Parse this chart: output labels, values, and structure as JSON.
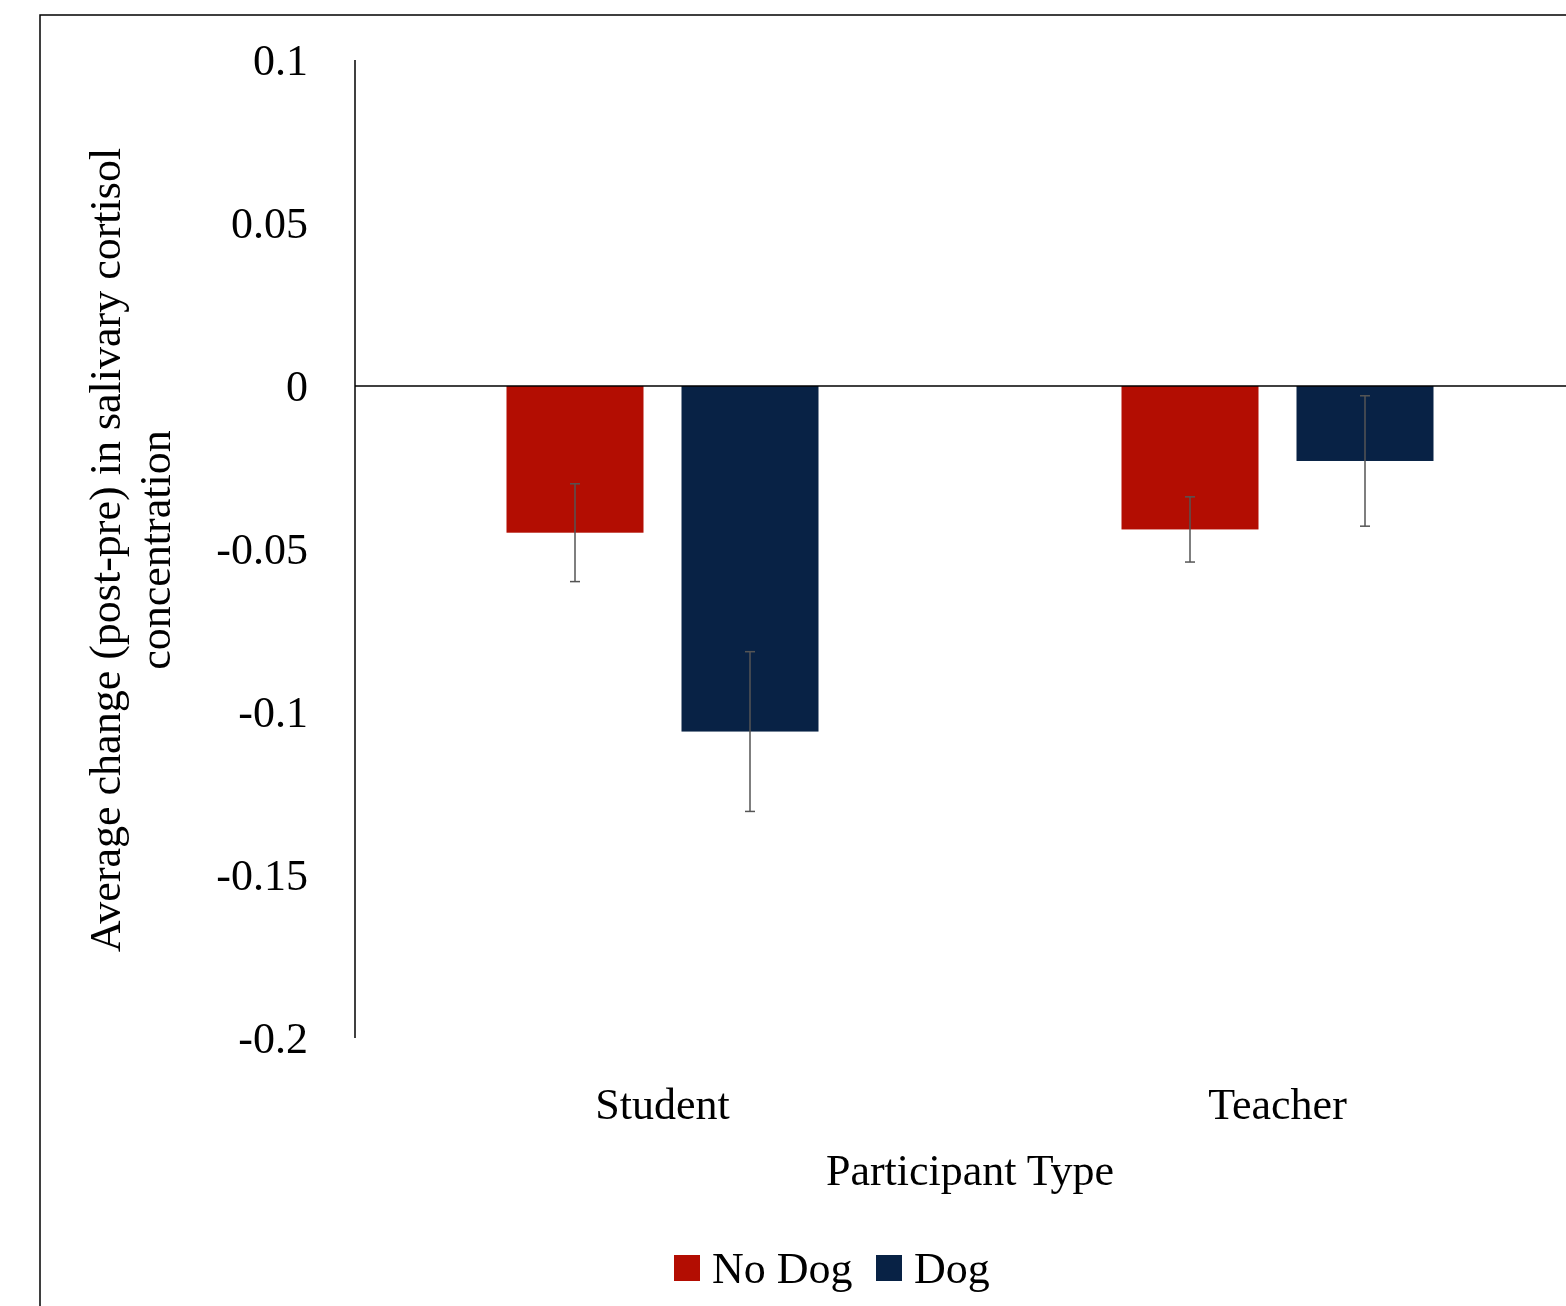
{
  "chart_data": {
    "type": "bar",
    "xlabel": "Participant Type",
    "ylabel": "Average change (post-pre) in salivary cortisol concentration",
    "categories": [
      "Student",
      "Teacher"
    ],
    "series": [
      {
        "name": "No Dog",
        "color": "#b30d02",
        "values": [
          -0.045,
          -0.044
        ],
        "errors": [
          0.015,
          0.01
        ]
      },
      {
        "name": "Dog",
        "color": "#082245",
        "values": [
          -0.106,
          -0.023
        ],
        "errors": [
          0.0245,
          0.02
        ]
      }
    ],
    "ylim": [
      -0.2,
      0.1
    ],
    "yticks": [
      -0.2,
      -0.15,
      -0.1,
      -0.05,
      0,
      0.05,
      0.1
    ],
    "legend": "bottom"
  }
}
